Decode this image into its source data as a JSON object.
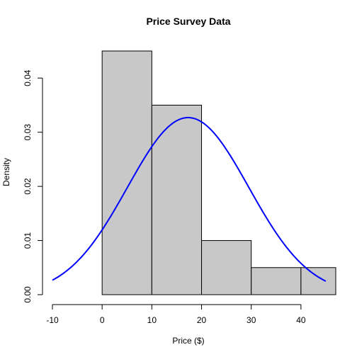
{
  "chart_data": {
    "type": "bar",
    "title": "Price Survey Data",
    "xlabel": "Price ($)",
    "ylabel": "Density",
    "bins": [
      {
        "from": 0,
        "to": 10,
        "density": 0.045
      },
      {
        "from": 10,
        "to": 20,
        "density": 0.035
      },
      {
        "from": 20,
        "to": 30,
        "density": 0.01
      },
      {
        "from": 30,
        "to": 40,
        "density": 0.005
      },
      {
        "from": 40,
        "to": 50,
        "density": 0.005
      }
    ],
    "xlim": [
      -10,
      47
    ],
    "ylim": [
      0,
      0.045
    ],
    "xticks": [
      -10,
      0,
      10,
      20,
      30,
      40
    ],
    "xtick_labels": [
      "-10",
      "0",
      "10",
      "20",
      "30",
      "40"
    ],
    "yticks": [
      0,
      0.01,
      0.02,
      0.03,
      0.04
    ],
    "ytick_labels": [
      "0.00",
      "0.01",
      "0.02",
      "0.03",
      "0.04"
    ],
    "grid": false,
    "series": [
      {
        "type": "line",
        "distribution": "normal",
        "mean": 17.3,
        "sd": 12.2,
        "x_range": [
          -10,
          45
        ],
        "color": "#0000ff"
      }
    ],
    "bar_color": "#c8c8c8"
  }
}
